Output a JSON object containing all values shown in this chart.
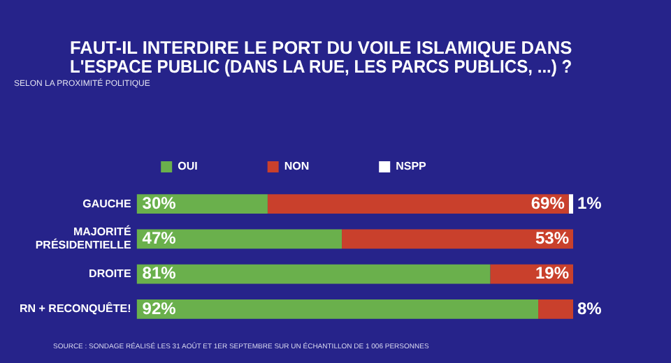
{
  "chart_data": {
    "type": "bar",
    "orientation": "horizontal",
    "stacked": true,
    "title": "FAUT-IL INTERDIRE LE PORT DU VOILE ISLAMIQUE DANS\nL'ESPACE PUBLIC (DANS LA RUE, LES PARCS PUBLICS, ...) ?",
    "subtitle": "SELON LA PROXIMITÉ POLITIQUE",
    "categories": [
      "GAUCHE",
      "MAJORITÉ\nPRÉSIDENTIELLE",
      "DROITE",
      "RN + RECONQUÊTE!"
    ],
    "series": [
      {
        "name": "OUI",
        "color": "#6ab04c",
        "values": [
          30,
          47,
          81,
          92
        ],
        "value_labels": [
          "30%",
          "47%",
          "81%",
          "92%"
        ]
      },
      {
        "name": "NON",
        "color": "#c9402c",
        "values": [
          69,
          53,
          19,
          8
        ],
        "value_labels": [
          "69%",
          "53%",
          "19%",
          "8%"
        ]
      },
      {
        "name": "NSPP",
        "color": "#ffffff",
        "values": [
          1,
          null,
          null,
          null
        ],
        "value_labels": [
          "1%",
          null,
          null,
          null
        ]
      }
    ],
    "legend": "top",
    "grid": false,
    "annotations": [
      "SOURCE : SONDAGE RÉALISÉ LES 31 AOÛT ET 1ER SEPTEMBRE SUR UN ÉCHANTILLON DE 1 006 PERSONNES"
    ]
  }
}
